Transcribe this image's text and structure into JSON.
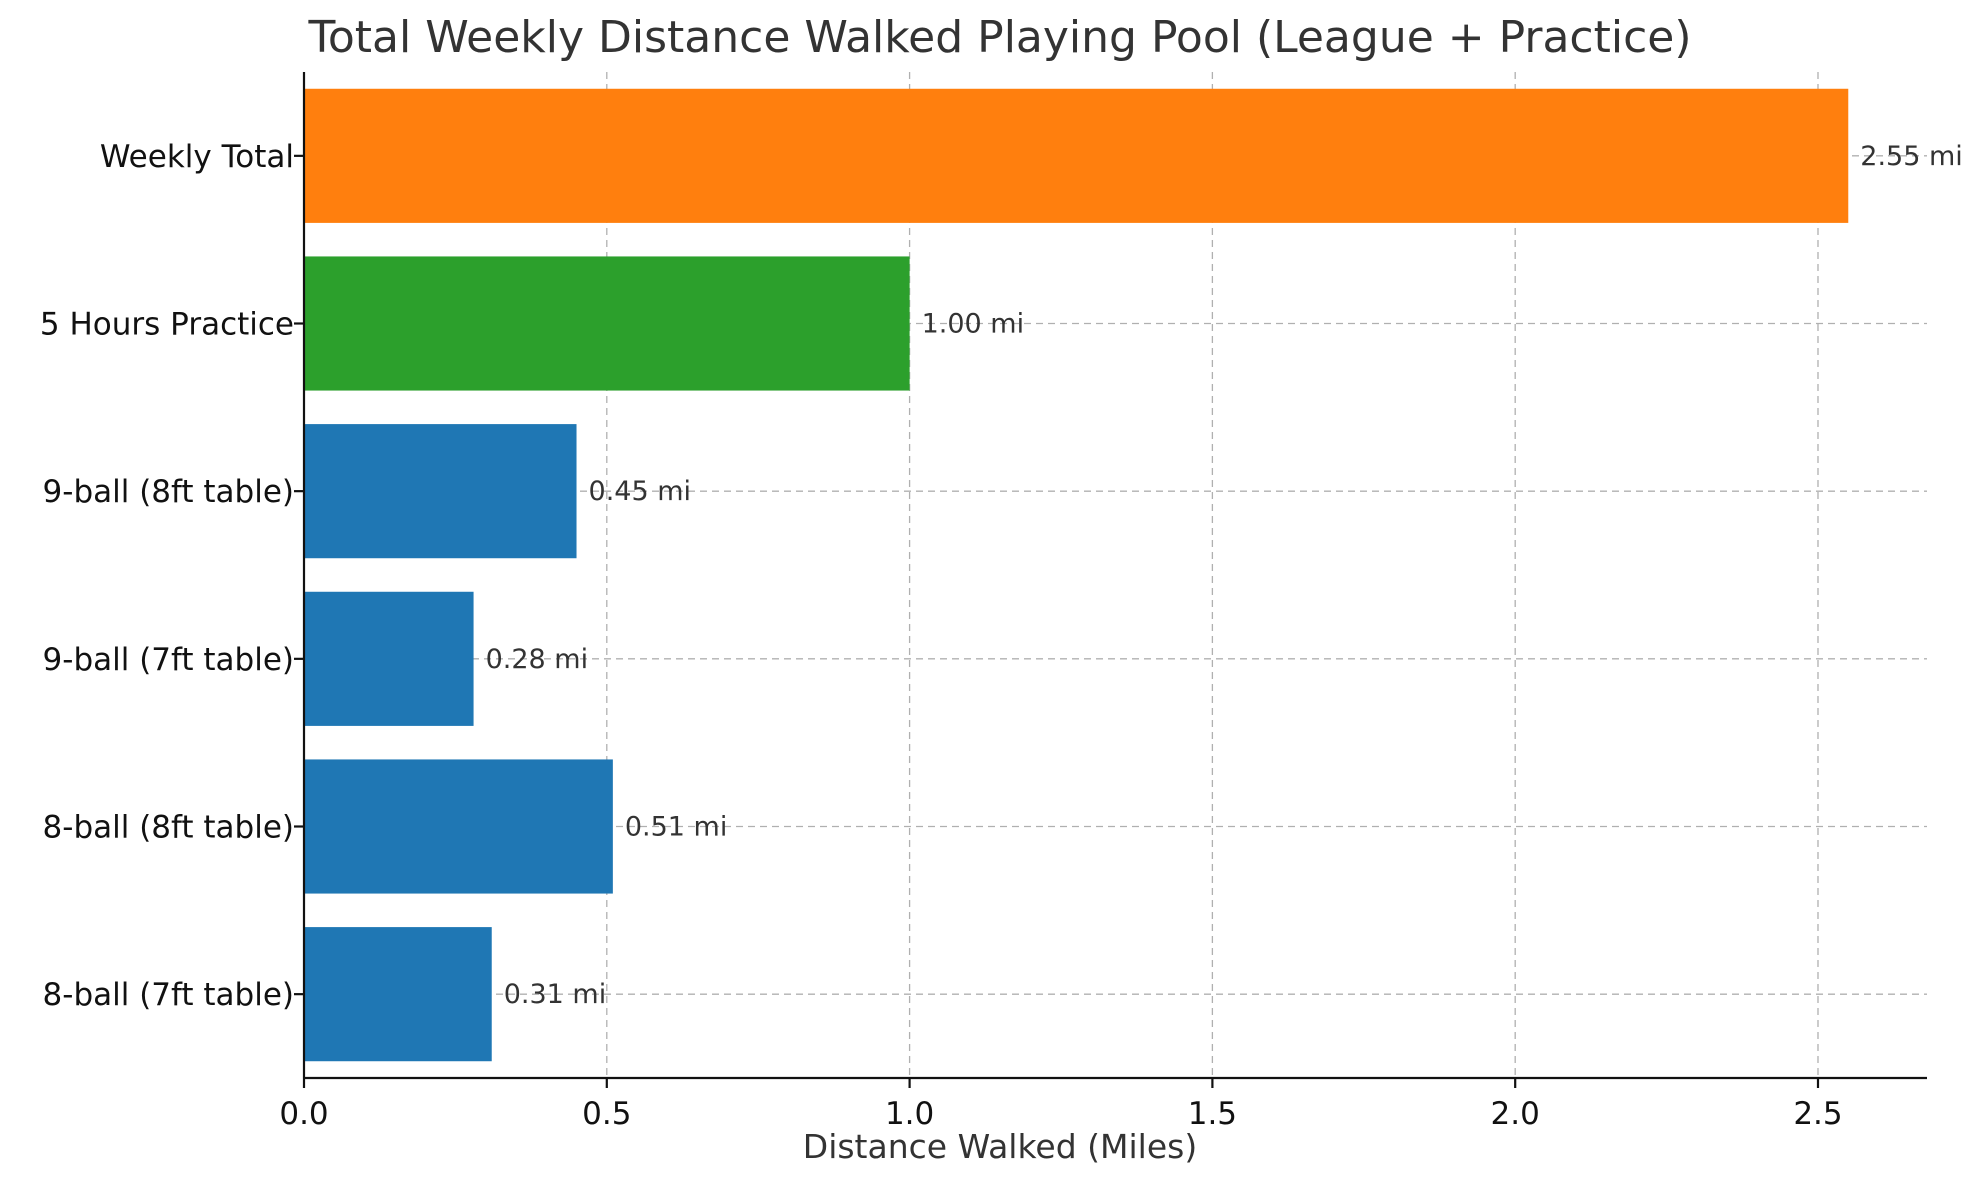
{
  "chart_data": {
    "type": "bar",
    "orientation": "horizontal",
    "title": "Total Weekly Distance Walked Playing Pool (League + Practice)",
    "xlabel": "Distance Walked (Miles)",
    "ylabel": "",
    "xlim": [
      0,
      2.68
    ],
    "xticks": [
      "0.0",
      "0.5",
      "1.0",
      "1.5",
      "2.0",
      "2.5"
    ],
    "grid": true,
    "categories": [
      "8-ball (7ft table)",
      "8-ball (8ft table)",
      "9-ball (7ft table)",
      "9-ball (8ft table)",
      "5 Hours Practice",
      "Weekly Total"
    ],
    "values": [
      0.31,
      0.51,
      0.28,
      0.45,
      1.0,
      2.55
    ],
    "data_labels": [
      "0.31 mi",
      "0.51 mi",
      "0.28 mi",
      "0.45 mi",
      "1.00 mi",
      "2.55 mi"
    ],
    "colors": [
      "#1f77b4",
      "#1f77b4",
      "#1f77b4",
      "#1f77b4",
      "#2ca02c",
      "#ff7f0e"
    ]
  }
}
